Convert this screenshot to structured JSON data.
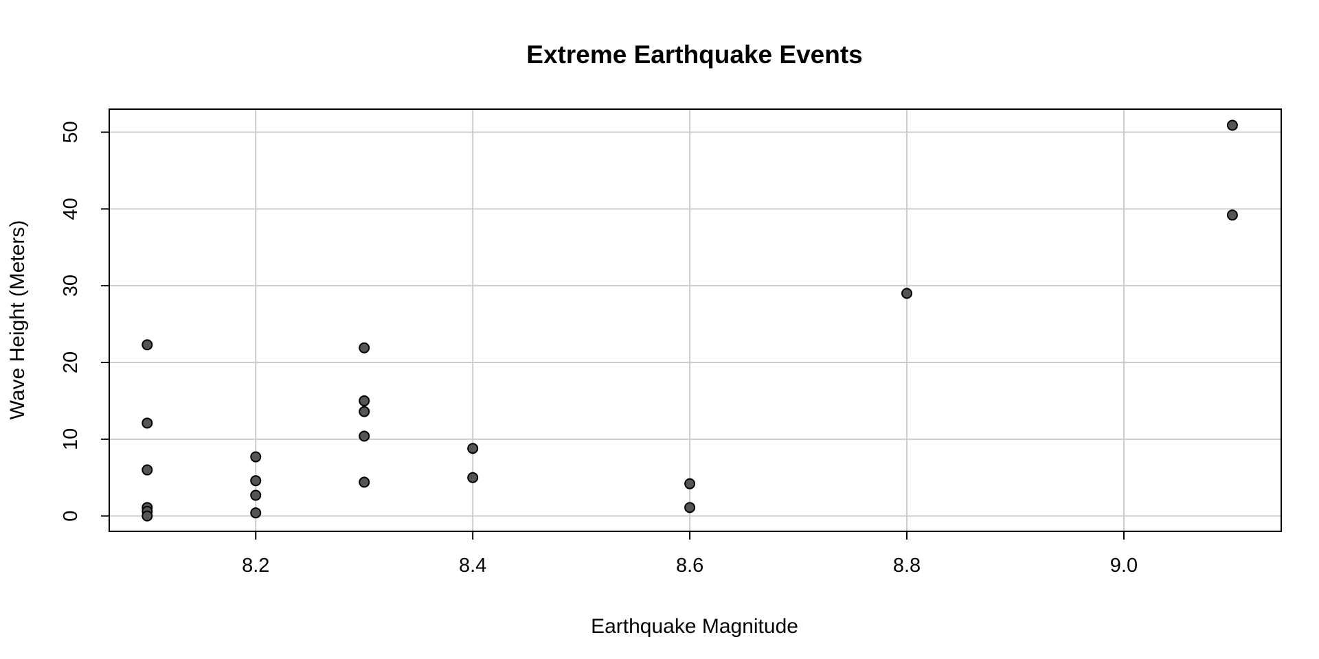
{
  "chart_data": {
    "type": "scatter",
    "title": "Extreme Earthquake Events",
    "xlabel": "Earthquake Magnitude",
    "ylabel": "Wave Height (Meters)",
    "xlim": [
      8.065,
      9.145
    ],
    "ylim": [
      -2,
      53
    ],
    "grid": true,
    "x_ticks": [
      8.2,
      8.4,
      8.6,
      8.8,
      9.0
    ],
    "x_tick_labels": [
      "8.2",
      "8.4",
      "8.6",
      "8.8",
      "9.0"
    ],
    "y_ticks": [
      0,
      10,
      20,
      30,
      40,
      50
    ],
    "y_tick_labels": [
      "0",
      "10",
      "20",
      "30",
      "40",
      "50"
    ],
    "point_color": "#555555",
    "point_stroke": "#000000",
    "grid_color": "#cccccc",
    "points": [
      {
        "x": 8.1,
        "y": 22.3
      },
      {
        "x": 8.1,
        "y": 12.1
      },
      {
        "x": 8.1,
        "y": 6.0
      },
      {
        "x": 8.1,
        "y": 1.1
      },
      {
        "x": 8.1,
        "y": 0.6
      },
      {
        "x": 8.1,
        "y": 0.0
      },
      {
        "x": 8.2,
        "y": 7.7
      },
      {
        "x": 8.2,
        "y": 4.6
      },
      {
        "x": 8.2,
        "y": 2.7
      },
      {
        "x": 8.2,
        "y": 0.4
      },
      {
        "x": 8.3,
        "y": 21.9
      },
      {
        "x": 8.3,
        "y": 15.0
      },
      {
        "x": 8.3,
        "y": 13.6
      },
      {
        "x": 8.3,
        "y": 10.4
      },
      {
        "x": 8.3,
        "y": 4.4
      },
      {
        "x": 8.4,
        "y": 8.8
      },
      {
        "x": 8.4,
        "y": 5.0
      },
      {
        "x": 8.6,
        "y": 4.2
      },
      {
        "x": 8.6,
        "y": 1.1
      },
      {
        "x": 8.8,
        "y": 29.0
      },
      {
        "x": 9.1,
        "y": 50.9
      },
      {
        "x": 9.1,
        "y": 39.2
      }
    ]
  }
}
